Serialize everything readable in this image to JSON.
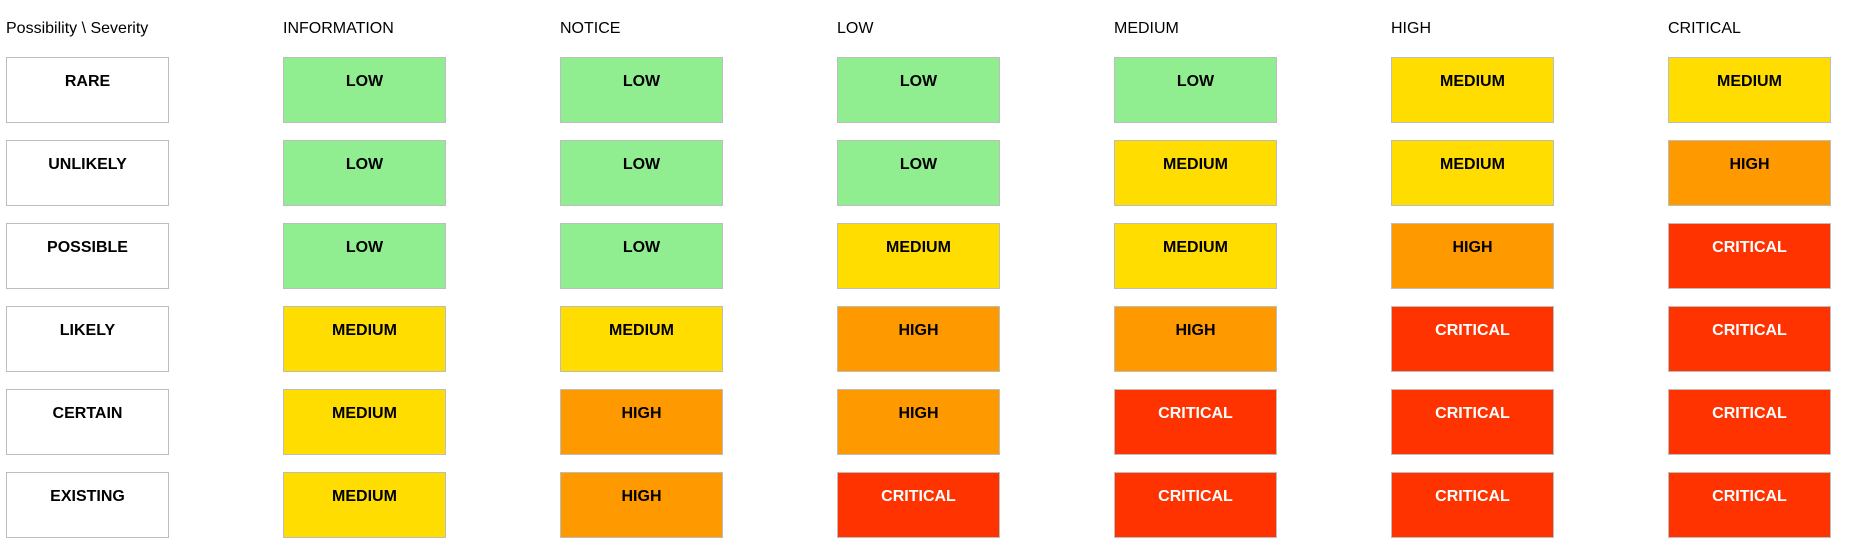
{
  "corner_label": "Possibility \\ Severity",
  "columns": [
    "INFORMATION",
    "NOTICE",
    "LOW",
    "MEDIUM",
    "HIGH",
    "CRITICAL"
  ],
  "rows": [
    {
      "label": "RARE",
      "cells": [
        "LOW",
        "LOW",
        "LOW",
        "LOW",
        "MEDIUM",
        "MEDIUM"
      ]
    },
    {
      "label": "UNLIKELY",
      "cells": [
        "LOW",
        "LOW",
        "LOW",
        "MEDIUM",
        "MEDIUM",
        "HIGH"
      ]
    },
    {
      "label": "POSSIBLE",
      "cells": [
        "LOW",
        "LOW",
        "MEDIUM",
        "MEDIUM",
        "HIGH",
        "CRITICAL"
      ]
    },
    {
      "label": "LIKELY",
      "cells": [
        "MEDIUM",
        "MEDIUM",
        "HIGH",
        "HIGH",
        "CRITICAL",
        "CRITICAL"
      ]
    },
    {
      "label": "CERTAIN",
      "cells": [
        "MEDIUM",
        "HIGH",
        "HIGH",
        "CRITICAL",
        "CRITICAL",
        "CRITICAL"
      ]
    },
    {
      "label": "EXISTING",
      "cells": [
        "MEDIUM",
        "HIGH",
        "CRITICAL",
        "CRITICAL",
        "CRITICAL",
        "CRITICAL"
      ]
    }
  ],
  "level_colors": {
    "LOW": "#90ee90",
    "MEDIUM": "#ffdd00",
    "HIGH": "#ff9900",
    "CRITICAL": "#ff3300"
  }
}
